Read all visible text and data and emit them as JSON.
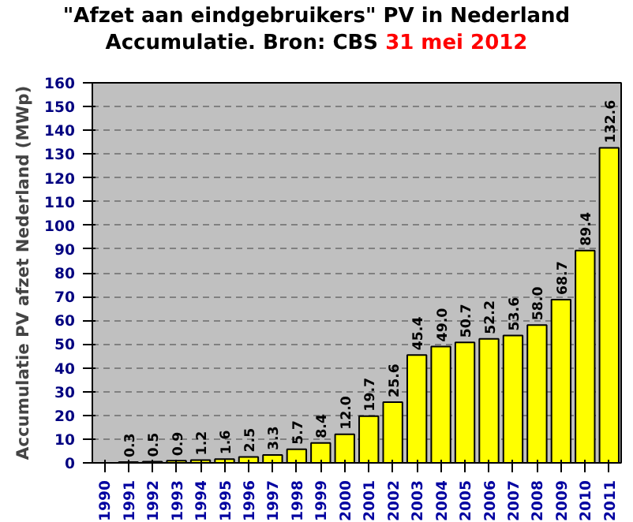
{
  "chart_data": {
    "type": "bar",
    "title": "\"Afzet aan eindgebruikers\" PV in Nederland",
    "subtitle": "Accumulatie. Bron: CBS",
    "annotations": [
      "31 mei 2012"
    ],
    "ylabel": "Accumulatie PV afzet Nederland (MWp)",
    "categories": [
      "1990",
      "1991",
      "1992",
      "1993",
      "1994",
      "1995",
      "1996",
      "1997",
      "1998",
      "1999",
      "2000",
      "2001",
      "2002",
      "2003",
      "2004",
      "2005",
      "2006",
      "2007",
      "2008",
      "2009",
      "2010",
      "2011"
    ],
    "values": [
      null,
      0.3,
      0.5,
      0.9,
      1.2,
      1.6,
      2.5,
      3.3,
      5.7,
      8.4,
      12.0,
      19.7,
      25.6,
      45.4,
      49.0,
      50.7,
      52.2,
      53.6,
      58.0,
      68.7,
      89.4,
      132.6
    ],
    "value_labels": [
      null,
      "0.3",
      "0.5",
      "0.9",
      "1.2",
      "1.6",
      "2.5",
      "3.3",
      "5.7",
      "8.4",
      "12.0",
      "19.7",
      "25.6",
      "45.4",
      "49.0",
      "50.7",
      "52.2",
      "53.6",
      "58.0",
      "68.7",
      "89.4",
      "132.6"
    ],
    "color": "#ffff00",
    "ylim": [
      0,
      160
    ],
    "yticks": [
      0,
      10,
      20,
      30,
      40,
      50,
      60,
      70,
      80,
      90,
      100,
      110,
      120,
      130,
      140,
      150,
      160
    ],
    "grid": "y"
  }
}
